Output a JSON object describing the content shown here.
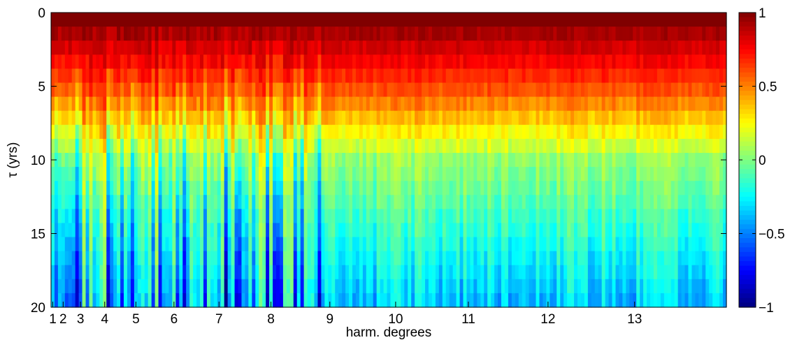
{
  "chart_data": {
    "type": "heatmap",
    "title": "",
    "xlabel": "harm. degrees",
    "ylabel": "τ (yrs)",
    "y_direction": "down",
    "ylim": [
      0,
      20
    ],
    "yticks": [
      0,
      5,
      10,
      15,
      20
    ],
    "x_tick_labels": [
      "1",
      "2",
      "3",
      "4",
      "5",
      "6",
      "7",
      "8",
      "9",
      "10",
      "11",
      "12",
      "13"
    ],
    "x_tick_columns": [
      1,
      4,
      9,
      16,
      25,
      36,
      49,
      64,
      81,
      100,
      121,
      144,
      169
    ],
    "n_columns": 195,
    "n_rows": 21,
    "colormap": "jet",
    "clim": [
      -1,
      1
    ],
    "colorbar_ticks": [
      1,
      0.5,
      0,
      -0.5,
      -1
    ],
    "colorbar_tick_labels": [
      "1",
      "0.5",
      "0",
      "−0.5",
      "−1"
    ],
    "colorbar_colors": {
      "1": "#800000",
      "0.5": "#ff8000",
      "0": "#80ff80",
      "-0.5": "#0080ff",
      "-1": "#000080"
    },
    "value_profile": {
      "description": "correlation decays with lag τ; low degrees (2–8) decay faster and reach strongly negative values, higher degrees level near −0.3",
      "low_degree_band": {
        "degrees": [
          2,
          8
        ],
        "value_at_0": 1.0,
        "value_at_5": 0.5,
        "value_at_10": -0.2,
        "value_at_20": -0.6
      },
      "high_degree_band": {
        "degrees": [
          9,
          14
        ],
        "value_at_0": 1.0,
        "value_at_5": 0.6,
        "value_at_10": 0.05,
        "value_at_20": -0.35
      }
    }
  }
}
